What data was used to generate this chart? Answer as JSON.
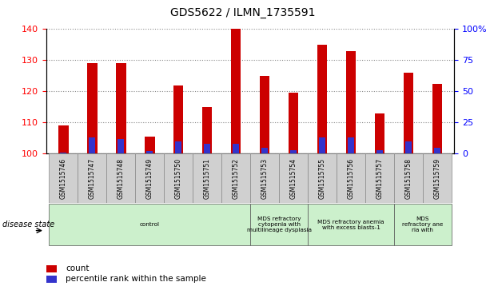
{
  "title": "GDS5622 / ILMN_1735591",
  "samples": [
    "GSM1515746",
    "GSM1515747",
    "GSM1515748",
    "GSM1515749",
    "GSM1515750",
    "GSM1515751",
    "GSM1515752",
    "GSM1515753",
    "GSM1515754",
    "GSM1515755",
    "GSM1515756",
    "GSM1515757",
    "GSM1515758",
    "GSM1515759"
  ],
  "count_values": [
    109,
    129,
    129,
    105.5,
    122,
    115,
    140,
    125,
    119.5,
    135,
    133,
    113,
    126,
    122.5
  ],
  "percentile_values": [
    1,
    13,
    12,
    2,
    10,
    8,
    8,
    5,
    3,
    13,
    13,
    3,
    10,
    5
  ],
  "baseline": 100,
  "ylim_left": [
    100,
    140
  ],
  "ylim_right": [
    0,
    100
  ],
  "yticks_left": [
    100,
    110,
    120,
    130,
    140
  ],
  "yticks_right": [
    0,
    25,
    50,
    75,
    100
  ],
  "bar_color_red": "#cc0000",
  "bar_color_blue": "#3333cc",
  "bar_width": 0.35,
  "blue_bar_width": 0.22,
  "disease_groups": [
    {
      "label": "control",
      "start": 0,
      "end": 7,
      "color": "#ccf0cc"
    },
    {
      "label": "MDS refractory\ncytopenia with\nmultilineage dysplasia",
      "start": 7,
      "end": 9,
      "color": "#ccf0cc"
    },
    {
      "label": "MDS refractory anemia\nwith excess blasts-1",
      "start": 9,
      "end": 12,
      "color": "#ccf0cc"
    },
    {
      "label": "MDS\nrefractory ane\nria with",
      "start": 12,
      "end": 14,
      "color": "#ccf0cc"
    }
  ],
  "disease_state_label": "disease state",
  "legend_count": "count",
  "legend_percentile": "percentile rank within the sample",
  "grid_color": "#888888",
  "plot_bg": "#ffffff",
  "tick_box_bg": "#d0d0d0",
  "fig_bg": "#ffffff"
}
